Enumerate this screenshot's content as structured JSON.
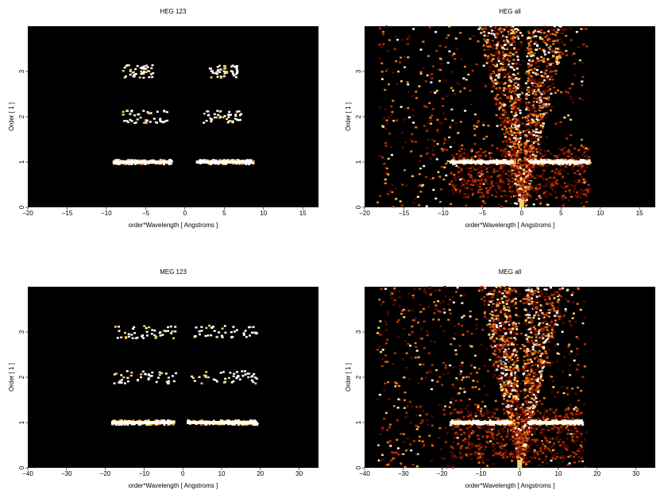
{
  "chart_data": [
    {
      "type": "heatmap",
      "title": "HEG 123",
      "xlabel": "order*Wavelength [ Angstroms ]",
      "ylabel": "Order [ 1 ]",
      "xlim": [
        -20,
        17
      ],
      "ylim": [
        0,
        4
      ],
      "xticks": [
        "−20",
        "−15",
        "−10",
        "−5",
        "0",
        "5",
        "10",
        "15"
      ],
      "xtick_values": [
        -20,
        -15,
        -10,
        -5,
        0,
        5,
        10,
        15
      ],
      "yticks": [
        "0",
        "1",
        "2",
        "3"
      ],
      "ytick_values": [
        0,
        1,
        2,
        3
      ],
      "bands": [
        {
          "order": 1,
          "x_ranges": [
            [
              -9.2,
              -1.8
            ],
            [
              1.4,
              8.6
            ]
          ],
          "intensity": "bright"
        },
        {
          "order": 2,
          "x_ranges": [
            [
              -8.2,
              -2.4
            ],
            [
              2.2,
              7.2
            ]
          ],
          "intensity": "sparse"
        },
        {
          "order": 3,
          "x_ranges": [
            [
              -8.0,
              -4.0
            ],
            [
              3.0,
              6.6
            ]
          ],
          "intensity": "sparse"
        }
      ],
      "colormap": [
        "#000000",
        "#5a0800",
        "#b83000",
        "#f07818",
        "#ffd060",
        "#ffffff"
      ]
    },
    {
      "type": "heatmap",
      "title": "HEG all",
      "xlabel": "order*Wavelength [ Angstroms ]",
      "ylabel": "Order [ 1 ]",
      "xlim": [
        -20,
        17
      ],
      "ylim": [
        0,
        4
      ],
      "xticks": [
        "−20",
        "−15",
        "−10",
        "−5",
        "0",
        "5",
        "10",
        "15"
      ],
      "xtick_values": [
        -20,
        -15,
        -10,
        -5,
        0,
        5,
        10,
        15
      ],
      "yticks": [
        "0",
        "1",
        "2",
        "3"
      ],
      "ytick_values": [
        0,
        1,
        2,
        3
      ],
      "bands": [
        {
          "order": 1,
          "x_ranges": [
            [
              -9.2,
              -1.0
            ],
            [
              1.0,
              8.6
            ]
          ],
          "intensity": "bright"
        }
      ],
      "colormap": [
        "#000000",
        "#5a0800",
        "#b83000",
        "#f07818",
        "#ffd060",
        "#ffffff"
      ]
    },
    {
      "type": "heatmap",
      "title": "MEG 123",
      "xlabel": "order*Wavelength [ Angstroms ]",
      "ylabel": "Order [ 1 ]",
      "xlim": [
        -40,
        35
      ],
      "ylim": [
        0,
        4
      ],
      "xticks": [
        "−40",
        "−30",
        "−20",
        "−10",
        "0",
        "10",
        "20",
        "30"
      ],
      "xtick_values": [
        -40,
        -30,
        -20,
        -10,
        0,
        10,
        20,
        30
      ],
      "yticks": [
        "0",
        "1",
        "2",
        "3"
      ],
      "ytick_values": [
        0,
        1,
        2,
        3
      ],
      "bands": [
        {
          "order": 1,
          "x_ranges": [
            [
              -18.5,
              -2.5
            ],
            [
              1.0,
              19.0
            ]
          ],
          "intensity": "bright"
        },
        {
          "order": 2,
          "x_ranges": [
            [
              -18.0,
              -2.0
            ],
            [
              2.0,
              19.0
            ]
          ],
          "intensity": "sparse"
        },
        {
          "order": 3,
          "x_ranges": [
            [
              -18.0,
              -2.0
            ],
            [
              2.0,
              19.5
            ]
          ],
          "intensity": "sparse"
        }
      ],
      "colormap": [
        "#000000",
        "#5a0800",
        "#b83000",
        "#f07818",
        "#ffd060",
        "#ffffff"
      ]
    },
    {
      "type": "heatmap",
      "title": "MEG all",
      "xlabel": "order*Wavelength [ Angstroms ]",
      "ylabel": "Order [ 1 ]",
      "xlim": [
        -40,
        35
      ],
      "ylim": [
        0,
        4
      ],
      "xticks": [
        "−40",
        "−30",
        "−20",
        "−10",
        "0",
        "10",
        "20",
        "30"
      ],
      "xtick_values": [
        -40,
        -30,
        -20,
        -10,
        0,
        10,
        20,
        30
      ],
      "yticks": [
        "0",
        "1",
        "2",
        "3"
      ],
      "ytick_values": [
        0,
        1,
        2,
        3
      ],
      "bands": [
        {
          "order": 1,
          "x_ranges": [
            [
              -18.0,
              -2.0
            ],
            [
              2.0,
              16.0
            ]
          ],
          "intensity": "bright"
        }
      ],
      "colormap": [
        "#000000",
        "#5a0800",
        "#b83000",
        "#f07818",
        "#ffd060",
        "#ffffff"
      ]
    }
  ]
}
